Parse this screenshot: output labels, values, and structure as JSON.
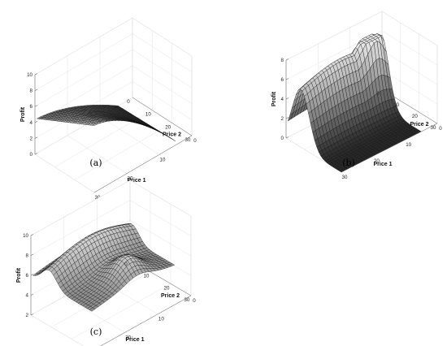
{
  "chart_data": [
    {
      "type": "surface",
      "caption": "(a)",
      "xlabel": "Price 1",
      "ylabel": "Price 2",
      "zlabel": "Profit",
      "xlim": [
        0,
        30
      ],
      "ylim": [
        0,
        30
      ],
      "zlim": [
        0,
        10
      ],
      "xticks": [
        10,
        20,
        30
      ],
      "yticks": [
        10,
        20,
        30
      ],
      "zticks": [
        0,
        2,
        4,
        6,
        8,
        10
      ],
      "x_range": [
        5,
        30
      ],
      "y_range": [
        1,
        30
      ],
      "grid": true,
      "peak_profit": 8.2,
      "profit_at_min_prices": 0.3
    },
    {
      "type": "surface",
      "caption": "(b)",
      "xlabel": "Price 1",
      "ylabel": "Price 2",
      "zlabel": "Profit",
      "xlim": [
        0,
        30
      ],
      "ylim": [
        0,
        30
      ],
      "zlim": [
        0,
        8
      ],
      "xticks": [
        10,
        20,
        30
      ],
      "yticks": [
        10,
        20,
        30
      ],
      "zticks": [
        0,
        2,
        4,
        6,
        8
      ],
      "x_range": [
        5,
        30
      ],
      "y_range": [
        1,
        30
      ],
      "grid": true,
      "peak_profit": 7.4,
      "profit_at_min_prices": 1.5
    },
    {
      "type": "surface",
      "caption": "(c)",
      "xlabel": "Price 1",
      "ylabel": "Price 2",
      "zlabel": "Profit",
      "xlim": [
        0,
        30
      ],
      "ylim": [
        0,
        30
      ],
      "zlim": [
        2,
        10
      ],
      "xticks": [
        10,
        20,
        30
      ],
      "yticks": [
        10,
        20,
        30
      ],
      "zticks": [
        2,
        4,
        6,
        8,
        10
      ],
      "x_range": [
        5,
        30
      ],
      "y_range": [
        1,
        30
      ],
      "grid": true,
      "peak_profit": 10.3,
      "profit_at_min_prices": 2.2
    }
  ]
}
